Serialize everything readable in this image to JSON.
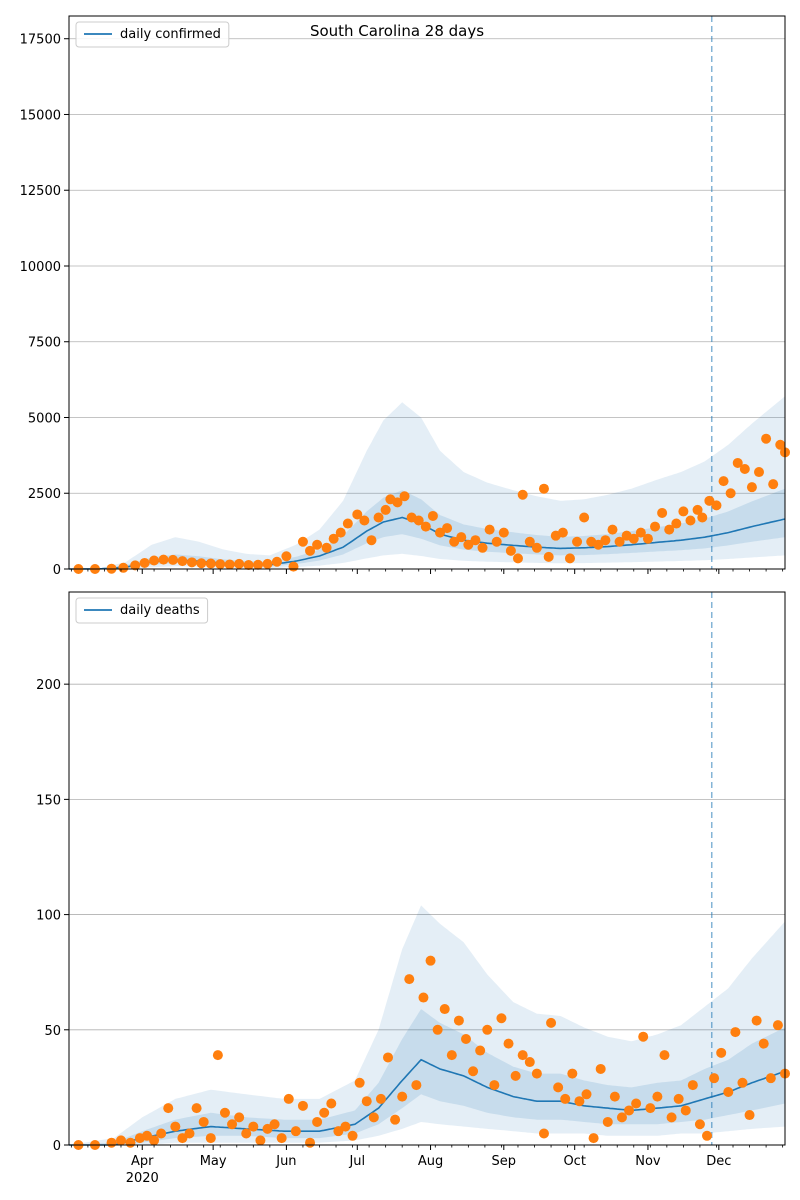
{
  "figure": {
    "title": "South Carolina 28 days"
  },
  "colors": {
    "model_line": "#1f77b4",
    "band": "#1f77b4",
    "observed_points": "#ff7f0e",
    "grid": "#b0b0b0",
    "forecast_marker": "#1f77b4"
  },
  "x_axis": {
    "start_date": "2020-03-01",
    "end_date": "2020-12-29",
    "forecast_start_date": "2020-11-28",
    "major_ticks": [
      {
        "date": "2020-04-01",
        "label": "Apr",
        "sublabel": "2020"
      },
      {
        "date": "2020-05-01",
        "label": "May",
        "sublabel": ""
      },
      {
        "date": "2020-06-01",
        "label": "Jun",
        "sublabel": ""
      },
      {
        "date": "2020-07-01",
        "label": "Jul",
        "sublabel": ""
      },
      {
        "date": "2020-08-01",
        "label": "Aug",
        "sublabel": ""
      },
      {
        "date": "2020-09-01",
        "label": "Sep",
        "sublabel": ""
      },
      {
        "date": "2020-10-01",
        "label": "Oct",
        "sublabel": ""
      },
      {
        "date": "2020-11-01",
        "label": "Nov",
        "sublabel": ""
      },
      {
        "date": "2020-12-01",
        "label": "Dec",
        "sublabel": ""
      }
    ]
  },
  "chart_data": [
    {
      "type": "line",
      "legend": {
        "label": "daily confirmed",
        "placement": "upper-left"
      },
      "grid": "horizontal",
      "ylim": [
        0,
        18250
      ],
      "yticks": [
        0,
        2500,
        5000,
        7500,
        10000,
        12500,
        15000,
        17500
      ],
      "yticklabels": [
        "0",
        "2500",
        "5000",
        "7500",
        "10000",
        "12500",
        "15000",
        "17500"
      ],
      "model": {
        "dates": [
          "2020-03-01",
          "2020-03-14",
          "2020-03-25",
          "2020-04-05",
          "2020-04-15",
          "2020-04-25",
          "2020-05-05",
          "2020-05-15",
          "2020-05-25",
          "2020-06-05",
          "2020-06-15",
          "2020-06-25",
          "2020-07-05",
          "2020-07-12",
          "2020-07-20",
          "2020-07-28",
          "2020-08-05",
          "2020-08-15",
          "2020-08-25",
          "2020-09-05",
          "2020-09-15",
          "2020-09-25",
          "2020-10-05",
          "2020-10-15",
          "2020-10-25",
          "2020-11-05",
          "2020-11-15",
          "2020-11-25",
          "2020-12-05",
          "2020-12-15",
          "2020-12-29"
        ],
        "values": [
          0,
          5,
          60,
          230,
          310,
          260,
          190,
          150,
          140,
          260,
          430,
          720,
          1250,
          1550,
          1700,
          1500,
          1150,
          950,
          850,
          780,
          720,
          680,
          700,
          740,
          800,
          880,
          950,
          1050,
          1200,
          1400,
          1650
        ],
        "band_inner": [
          [
            0,
            0
          ],
          [
            0,
            12
          ],
          [
            25,
            120
          ],
          [
            140,
            380
          ],
          [
            200,
            480
          ],
          [
            170,
            420
          ],
          [
            120,
            320
          ],
          [
            90,
            260
          ],
          [
            80,
            240
          ],
          [
            160,
            400
          ],
          [
            280,
            640
          ],
          [
            480,
            1100
          ],
          [
            850,
            1900
          ],
          [
            1050,
            2350
          ],
          [
            1150,
            2600
          ],
          [
            1000,
            2300
          ],
          [
            780,
            1780
          ],
          [
            640,
            1470
          ],
          [
            570,
            1320
          ],
          [
            520,
            1210
          ],
          [
            480,
            1120
          ],
          [
            450,
            1060
          ],
          [
            460,
            1090
          ],
          [
            490,
            1150
          ],
          [
            530,
            1250
          ],
          [
            580,
            1380
          ],
          [
            620,
            1500
          ],
          [
            680,
            1660
          ],
          [
            780,
            1900
          ],
          [
            900,
            2230
          ],
          [
            1050,
            2650
          ]
        ],
        "band_outer": [
          [
            0,
            0
          ],
          [
            0,
            25
          ],
          [
            10,
            230
          ],
          [
            60,
            800
          ],
          [
            90,
            1050
          ],
          [
            75,
            900
          ],
          [
            50,
            650
          ],
          [
            35,
            500
          ],
          [
            30,
            450
          ],
          [
            65,
            800
          ],
          [
            110,
            1300
          ],
          [
            200,
            2250
          ],
          [
            350,
            3900
          ],
          [
            450,
            4900
          ],
          [
            500,
            5500
          ],
          [
            430,
            5000
          ],
          [
            330,
            3900
          ],
          [
            270,
            3200
          ],
          [
            240,
            2850
          ],
          [
            220,
            2600
          ],
          [
            200,
            2400
          ],
          [
            190,
            2250
          ],
          [
            195,
            2300
          ],
          [
            210,
            2450
          ],
          [
            225,
            2650
          ],
          [
            245,
            2950
          ],
          [
            265,
            3200
          ],
          [
            290,
            3550
          ],
          [
            330,
            4100
          ],
          [
            380,
            4800
          ],
          [
            450,
            5700
          ]
        ]
      },
      "observed": {
        "dates": [
          "2020-03-05",
          "2020-03-12",
          "2020-03-19",
          "2020-03-24",
          "2020-03-29",
          "2020-04-02",
          "2020-04-06",
          "2020-04-10",
          "2020-04-14",
          "2020-04-18",
          "2020-04-22",
          "2020-04-26",
          "2020-04-30",
          "2020-05-04",
          "2020-05-08",
          "2020-05-12",
          "2020-05-16",
          "2020-05-20",
          "2020-05-24",
          "2020-05-28",
          "2020-06-01",
          "2020-06-04",
          "2020-06-08",
          "2020-06-11",
          "2020-06-14",
          "2020-06-18",
          "2020-06-21",
          "2020-06-24",
          "2020-06-27",
          "2020-07-01",
          "2020-07-04",
          "2020-07-07",
          "2020-07-10",
          "2020-07-13",
          "2020-07-15",
          "2020-07-18",
          "2020-07-21",
          "2020-07-24",
          "2020-07-27",
          "2020-07-30",
          "2020-08-02",
          "2020-08-05",
          "2020-08-08",
          "2020-08-11",
          "2020-08-14",
          "2020-08-17",
          "2020-08-20",
          "2020-08-23",
          "2020-08-26",
          "2020-08-29",
          "2020-09-01",
          "2020-09-04",
          "2020-09-07",
          "2020-09-09",
          "2020-09-12",
          "2020-09-15",
          "2020-09-18",
          "2020-09-20",
          "2020-09-23",
          "2020-09-26",
          "2020-09-29",
          "2020-10-02",
          "2020-10-05",
          "2020-10-08",
          "2020-10-11",
          "2020-10-14",
          "2020-10-17",
          "2020-10-20",
          "2020-10-23",
          "2020-10-26",
          "2020-10-29",
          "2020-11-01",
          "2020-11-04",
          "2020-11-07",
          "2020-11-10",
          "2020-11-13",
          "2020-11-16",
          "2020-11-19",
          "2020-11-22",
          "2020-11-24",
          "2020-11-27",
          "2020-11-30",
          "2020-12-03",
          "2020-12-06",
          "2020-12-09",
          "2020-12-12",
          "2020-12-15",
          "2020-12-18",
          "2020-12-21",
          "2020-12-24",
          "2020-12-27",
          "2020-12-29"
        ],
        "values": [
          0,
          0,
          10,
          40,
          120,
          200,
          280,
          310,
          300,
          260,
          220,
          190,
          180,
          160,
          150,
          170,
          130,
          140,
          170,
          240,
          420,
          80,
          900,
          600,
          800,
          700,
          1000,
          1200,
          1500,
          1800,
          1600,
          950,
          1700,
          1950,
          2300,
          2200,
          2400,
          1700,
          1600,
          1400,
          1750,
          1200,
          1350,
          900,
          1050,
          800,
          950,
          700,
          1300,
          900,
          1200,
          600,
          350,
          2450,
          900,
          700,
          2650,
          400,
          1100,
          1200,
          350,
          900,
          1700,
          900,
          800,
          950,
          1300,
          900,
          1100,
          1000,
          1200,
          1000,
          1400,
          1850,
          1300,
          1500,
          1900,
          1600,
          1950,
          1700,
          2250,
          2100,
          2900,
          2500,
          3500,
          3300,
          2700,
          3200,
          4300,
          2800,
          4100,
          3850
        ]
      }
    },
    {
      "type": "line",
      "legend": {
        "label": "daily deaths",
        "placement": "upper-left"
      },
      "grid": "horizontal",
      "ylim": [
        0,
        240
      ],
      "yticks": [
        0,
        50,
        100,
        150,
        200
      ],
      "yticklabels": [
        "0",
        "50",
        "100",
        "150",
        "200"
      ],
      "model": {
        "dates": [
          "2020-03-01",
          "2020-03-20",
          "2020-04-01",
          "2020-04-15",
          "2020-04-30",
          "2020-05-15",
          "2020-05-31",
          "2020-06-15",
          "2020-06-30",
          "2020-07-10",
          "2020-07-20",
          "2020-07-28",
          "2020-08-05",
          "2020-08-15",
          "2020-08-25",
          "2020-09-05",
          "2020-09-15",
          "2020-09-25",
          "2020-10-05",
          "2020-10-15",
          "2020-10-25",
          "2020-11-05",
          "2020-11-15",
          "2020-11-25",
          "2020-12-05",
          "2020-12-15",
          "2020-12-29"
        ],
        "values": [
          0,
          0,
          3,
          6,
          8,
          7,
          6,
          6,
          9,
          16,
          28,
          37,
          33,
          30,
          25,
          21,
          19,
          19,
          17,
          16,
          15,
          16,
          17,
          20,
          23,
          27,
          32
        ],
        "band_inner": [
          [
            0,
            0
          ],
          [
            0,
            1
          ],
          [
            1,
            6
          ],
          [
            3,
            11
          ],
          [
            4,
            14
          ],
          [
            4,
            12
          ],
          [
            3,
            11
          ],
          [
            3,
            11
          ],
          [
            5,
            15
          ],
          [
            9,
            27
          ],
          [
            16,
            46
          ],
          [
            22,
            59
          ],
          [
            19,
            53
          ],
          [
            17,
            48
          ],
          [
            14,
            40
          ],
          [
            12,
            34
          ],
          [
            11,
            31
          ],
          [
            11,
            31
          ],
          [
            10,
            28
          ],
          [
            9,
            26
          ],
          [
            9,
            25
          ],
          [
            9,
            27
          ],
          [
            10,
            28
          ],
          [
            11,
            33
          ],
          [
            13,
            37
          ],
          [
            15,
            44
          ],
          [
            18,
            51
          ]
        ],
        "band_outer": [
          [
            0,
            0
          ],
          [
            0,
            3
          ],
          [
            0,
            12
          ],
          [
            1,
            20
          ],
          [
            1,
            24
          ],
          [
            1,
            22
          ],
          [
            1,
            20
          ],
          [
            1,
            20
          ],
          [
            2,
            28
          ],
          [
            4,
            50
          ],
          [
            7,
            85
          ],
          [
            10,
            104
          ],
          [
            9,
            96
          ],
          [
            8,
            88
          ],
          [
            7,
            74
          ],
          [
            6,
            62
          ],
          [
            5,
            57
          ],
          [
            5,
            56
          ],
          [
            5,
            51
          ],
          [
            4,
            47
          ],
          [
            4,
            45
          ],
          [
            4,
            48
          ],
          [
            5,
            52
          ],
          [
            5,
            60
          ],
          [
            6,
            68
          ],
          [
            7,
            81
          ],
          [
            8,
            97
          ]
        ]
      },
      "observed": {
        "dates": [
          "2020-03-05",
          "2020-03-12",
          "2020-03-19",
          "2020-03-23",
          "2020-03-27",
          "2020-03-31",
          "2020-04-03",
          "2020-04-06",
          "2020-04-09",
          "2020-04-12",
          "2020-04-15",
          "2020-04-18",
          "2020-04-21",
          "2020-04-24",
          "2020-04-27",
          "2020-04-30",
          "2020-05-03",
          "2020-05-06",
          "2020-05-09",
          "2020-05-12",
          "2020-05-15",
          "2020-05-18",
          "2020-05-21",
          "2020-05-24",
          "2020-05-27",
          "2020-05-30",
          "2020-06-02",
          "2020-06-05",
          "2020-06-08",
          "2020-06-11",
          "2020-06-14",
          "2020-06-17",
          "2020-06-20",
          "2020-06-23",
          "2020-06-26",
          "2020-06-29",
          "2020-07-02",
          "2020-07-05",
          "2020-07-08",
          "2020-07-11",
          "2020-07-14",
          "2020-07-17",
          "2020-07-20",
          "2020-07-23",
          "2020-07-26",
          "2020-07-29",
          "2020-08-01",
          "2020-08-04",
          "2020-08-07",
          "2020-08-10",
          "2020-08-13",
          "2020-08-16",
          "2020-08-19",
          "2020-08-22",
          "2020-08-25",
          "2020-08-28",
          "2020-08-31",
          "2020-09-03",
          "2020-09-06",
          "2020-09-09",
          "2020-09-12",
          "2020-09-15",
          "2020-09-18",
          "2020-09-21",
          "2020-09-24",
          "2020-09-27",
          "2020-09-30",
          "2020-10-03",
          "2020-10-06",
          "2020-10-09",
          "2020-10-12",
          "2020-10-15",
          "2020-10-18",
          "2020-10-21",
          "2020-10-24",
          "2020-10-27",
          "2020-10-30",
          "2020-11-02",
          "2020-11-05",
          "2020-11-08",
          "2020-11-11",
          "2020-11-14",
          "2020-11-17",
          "2020-11-20",
          "2020-11-23",
          "2020-11-26",
          "2020-11-29",
          "2020-12-02",
          "2020-12-05",
          "2020-12-08",
          "2020-12-11",
          "2020-12-14",
          "2020-12-17",
          "2020-12-20",
          "2020-12-23",
          "2020-12-26",
          "2020-12-29"
        ],
        "values": [
          0,
          0,
          1,
          2,
          1,
          3,
          4,
          2,
          5,
          16,
          8,
          3,
          5,
          16,
          10,
          3,
          39,
          14,
          9,
          12,
          5,
          8,
          2,
          7,
          9,
          3,
          20,
          6,
          17,
          1,
          10,
          14,
          18,
          6,
          8,
          4,
          27,
          19,
          12,
          20,
          38,
          11,
          21,
          72,
          26,
          64,
          80,
          50,
          59,
          39,
          54,
          46,
          32,
          41,
          50,
          26,
          55,
          44,
          30,
          39,
          36,
          31,
          5,
          53,
          25,
          20,
          31,
          19,
          22,
          3,
          33,
          10,
          21,
          12,
          15,
          18,
          47,
          16,
          21,
          39,
          12,
          20,
          15,
          26,
          9,
          4,
          29,
          40,
          23,
          49,
          27,
          13,
          54,
          44,
          29,
          52,
          31
        ]
      }
    }
  ]
}
